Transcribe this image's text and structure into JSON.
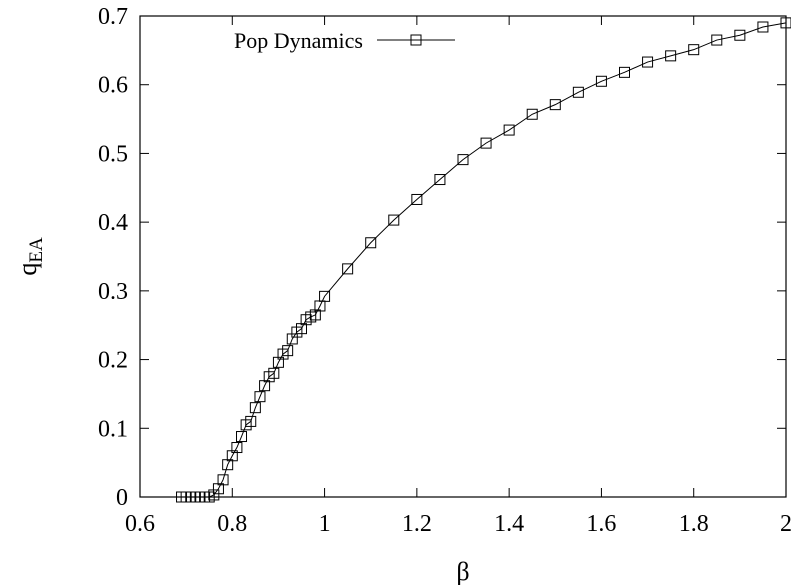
{
  "chart_data": {
    "type": "line",
    "title": "",
    "xlabel": "β",
    "ylabel": "q",
    "ylabel_subscript": "EA",
    "xlim": [
      0.6,
      2.0
    ],
    "ylim": [
      0.0,
      0.7
    ],
    "x_ticks": [
      0.6,
      0.8,
      1.0,
      1.2,
      1.4,
      1.6,
      1.8,
      2.0
    ],
    "x_tick_labels": [
      "0.6",
      "0.8",
      "1",
      "1.2",
      "1.4",
      "1.6",
      "1.8",
      "2"
    ],
    "y_ticks": [
      0.0,
      0.1,
      0.2,
      0.3,
      0.4,
      0.5,
      0.6,
      0.7
    ],
    "y_tick_labels": [
      "0",
      "0.1",
      "0.2",
      "0.3",
      "0.4",
      "0.5",
      "0.6",
      "0.7"
    ],
    "grid": false,
    "legend": "top-left",
    "series_color": "#000000",
    "series": [
      {
        "name": "Pop Dynamics",
        "marker": "open-square",
        "x": [
          0.69,
          0.7,
          0.71,
          0.72,
          0.73,
          0.74,
          0.75,
          0.76,
          0.77,
          0.78,
          0.79,
          0.8,
          0.81,
          0.82,
          0.83,
          0.84,
          0.85,
          0.86,
          0.87,
          0.88,
          0.89,
          0.9,
          0.91,
          0.92,
          0.93,
          0.94,
          0.95,
          0.96,
          0.97,
          0.98,
          0.99,
          1.0,
          1.05,
          1.1,
          1.15,
          1.2,
          1.25,
          1.3,
          1.35,
          1.4,
          1.45,
          1.5,
          1.55,
          1.6,
          1.65,
          1.7,
          1.75,
          1.8,
          1.85,
          1.9,
          1.95,
          2.0
        ],
        "values": [
          0.0,
          0.0,
          0.0,
          0.0,
          0.0,
          0.0,
          0.0,
          0.003,
          0.012,
          0.025,
          0.047,
          0.06,
          0.072,
          0.088,
          0.105,
          0.11,
          0.13,
          0.146,
          0.162,
          0.175,
          0.18,
          0.196,
          0.208,
          0.213,
          0.23,
          0.24,
          0.245,
          0.258,
          0.262,
          0.265,
          0.278,
          0.292,
          0.332,
          0.37,
          0.403,
          0.433,
          0.462,
          0.491,
          0.515,
          0.534,
          0.557,
          0.571,
          0.589,
          0.605,
          0.618,
          0.633,
          0.642,
          0.651,
          0.665,
          0.672,
          0.684,
          0.69
        ]
      }
    ]
  }
}
